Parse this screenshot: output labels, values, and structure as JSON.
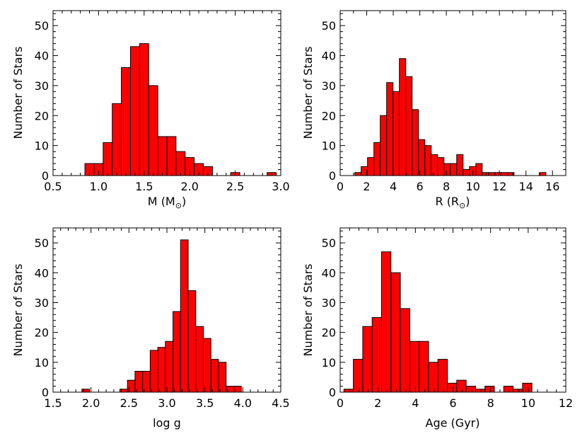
{
  "bar_color": "#ff0000",
  "chart_data": [
    {
      "type": "bar",
      "panel": "top-left",
      "xlabel": "M (M",
      "xlabel_sub": "⊙",
      "xlabel_close": ")",
      "ylabel": "Number of Stars",
      "xlim": [
        0.5,
        3.0
      ],
      "ylim": [
        0,
        55
      ],
      "xticks": [
        "0.5",
        "1.0",
        "1.5",
        "2.0",
        "2.5",
        "3.0"
      ],
      "xtick_values": [
        0.5,
        1.0,
        1.5,
        2.0,
        2.5,
        3.0
      ],
      "yticks": [
        "0",
        "10",
        "20",
        "30",
        "40",
        "50"
      ],
      "ytick_values": [
        0,
        10,
        20,
        30,
        40,
        50
      ],
      "x_minor": 0.1,
      "y_minor": 2,
      "bin_start": 0.85,
      "bin_width": 0.1,
      "values": [
        4,
        4,
        11,
        24,
        36,
        43,
        44,
        30,
        13,
        13,
        8,
        6,
        4,
        3,
        0,
        0,
        1,
        0,
        0,
        0,
        1
      ]
    },
    {
      "type": "bar",
      "panel": "top-right",
      "xlabel": "R (R",
      "xlabel_sub": "⊙",
      "xlabel_close": ")",
      "ylabel": "Number of Stars",
      "xlim": [
        0,
        17
      ],
      "ylim": [
        0,
        55
      ],
      "xticks": [
        "0",
        "2",
        "4",
        "6",
        "8",
        "10",
        "12",
        "14",
        "16"
      ],
      "xtick_values": [
        0,
        2,
        4,
        6,
        8,
        10,
        12,
        14,
        16
      ],
      "yticks": [
        "0",
        "10",
        "20",
        "30",
        "40",
        "50"
      ],
      "ytick_values": [
        0,
        10,
        20,
        30,
        40,
        50
      ],
      "x_minor": 1,
      "y_minor": 2,
      "bin_start": 1.1,
      "bin_width": 0.48,
      "values": [
        1,
        3,
        6,
        11,
        20,
        31,
        28,
        39,
        33,
        22,
        12,
        10,
        7,
        6,
        4,
        4,
        7,
        2,
        3,
        4,
        1,
        1,
        1,
        1,
        1,
        0,
        0,
        0,
        0,
        1
      ]
    },
    {
      "type": "bar",
      "panel": "bottom-left",
      "xlabel": "log g",
      "ylabel": "Number of Stars",
      "xlim": [
        1.5,
        4.5
      ],
      "ylim": [
        0,
        55
      ],
      "xticks": [
        "1.5",
        "2.0",
        "2.5",
        "3.0",
        "3.5",
        "4.0",
        "4.5"
      ],
      "xtick_values": [
        1.5,
        2.0,
        2.5,
        3.0,
        3.5,
        4.0,
        4.5
      ],
      "yticks": [
        "0",
        "10",
        "20",
        "30",
        "40",
        "50"
      ],
      "ytick_values": [
        0,
        10,
        20,
        30,
        40,
        50
      ],
      "x_minor": 0.1,
      "y_minor": 2,
      "bin_start": 1.88,
      "bin_width": 0.1,
      "values": [
        1,
        0,
        0,
        0,
        0,
        1,
        4,
        7,
        7,
        14,
        15,
        17,
        27,
        51,
        34,
        22,
        18,
        11,
        10,
        2,
        2
      ]
    },
    {
      "type": "bar",
      "panel": "bottom-right",
      "xlabel": "Age (Gyr)",
      "ylabel": "Number of Stars",
      "xlim": [
        0,
        12
      ],
      "ylim": [
        0,
        55
      ],
      "xticks": [
        "0",
        "2",
        "4",
        "6",
        "8",
        "10",
        "12"
      ],
      "xtick_values": [
        0,
        2,
        4,
        6,
        8,
        10,
        12
      ],
      "yticks": [
        "0",
        "10",
        "20",
        "30",
        "40",
        "50"
      ],
      "ytick_values": [
        0,
        10,
        20,
        30,
        40,
        50
      ],
      "x_minor": 0.5,
      "y_minor": 2,
      "bin_start": 0.2,
      "bin_width": 0.5,
      "values": [
        1,
        11,
        22,
        25,
        47,
        40,
        28,
        17,
        17,
        10,
        11,
        3,
        4,
        2,
        1,
        2,
        0,
        2,
        1,
        3
      ]
    }
  ]
}
